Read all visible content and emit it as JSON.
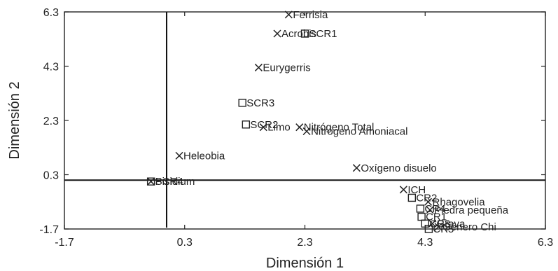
{
  "chart_data": {
    "type": "scatter",
    "title": "",
    "xlabel": "Dimensión 1",
    "ylabel": "Dimensión 2",
    "xlim": [
      -1.7,
      6.3
    ],
    "ylim": [
      -1.7,
      6.3
    ],
    "xticks": [
      "-1.7",
      "0.3",
      "2.3",
      "4.3",
      "6.3"
    ],
    "yticks": [
      "-1.7",
      "0.3",
      "2.3",
      "4.3",
      "6.3"
    ],
    "grid": false,
    "reference_lines": {
      "x": 0.0,
      "y": 0.1
    },
    "series": [
      {
        "marker": "x",
        "points": [
          {
            "label": "Ferrisia",
            "x": 2.03,
            "y": 6.2
          },
          {
            "label": "Acrobis",
            "x": 1.84,
            "y": 5.5
          },
          {
            "label": "Eurygerris",
            "x": 1.53,
            "y": 4.25
          },
          {
            "label": "Limo",
            "x": 1.61,
            "y": 2.05
          },
          {
            "label": "Nitrógeno Total",
            "x": 2.21,
            "y": 2.05
          },
          {
            "label": "Nitrógeno Amoniacal",
            "x": 2.33,
            "y": 1.9
          },
          {
            "label": "Heleobia",
            "x": 0.21,
            "y": 1.0
          },
          {
            "label": "Oxígeno disuelo",
            "x": 3.16,
            "y": 0.55
          },
          {
            "label": "Pisidium",
            "x": -0.26,
            "y": 0.05
          },
          {
            "label": "ICH",
            "x": 3.94,
            "y": -0.25
          },
          {
            "label": "Rhagovelia",
            "x": 4.35,
            "y": -0.7
          },
          {
            "label": "Piedra pequeña",
            "x": 4.38,
            "y": -1.0
          },
          {
            "label": "Grava",
            "x": 4.42,
            "y": -1.5
          },
          {
            "label": "Género Chi",
            "x": 4.52,
            "y": -1.62
          }
        ]
      },
      {
        "marker": "square",
        "points": [
          {
            "label": "SCR1",
            "x": 2.3,
            "y": 5.5
          },
          {
            "label": "SCR3",
            "x": 1.26,
            "y": 2.95
          },
          {
            "label": "SCR2",
            "x": 1.32,
            "y": 2.15
          },
          {
            "label": "SCR4",
            "x": -0.26,
            "y": 0.05
          },
          {
            "label": "CR2",
            "x": 4.08,
            "y": -0.55
          },
          {
            "label": "CR4",
            "x": 4.22,
            "y": -0.95
          },
          {
            "label": "CR1",
            "x": 4.24,
            "y": -1.25
          },
          {
            "label": "CR3",
            "x": 4.3,
            "y": -1.5
          },
          {
            "label": "CR5",
            "x": 4.36,
            "y": -1.7
          }
        ]
      }
    ]
  }
}
